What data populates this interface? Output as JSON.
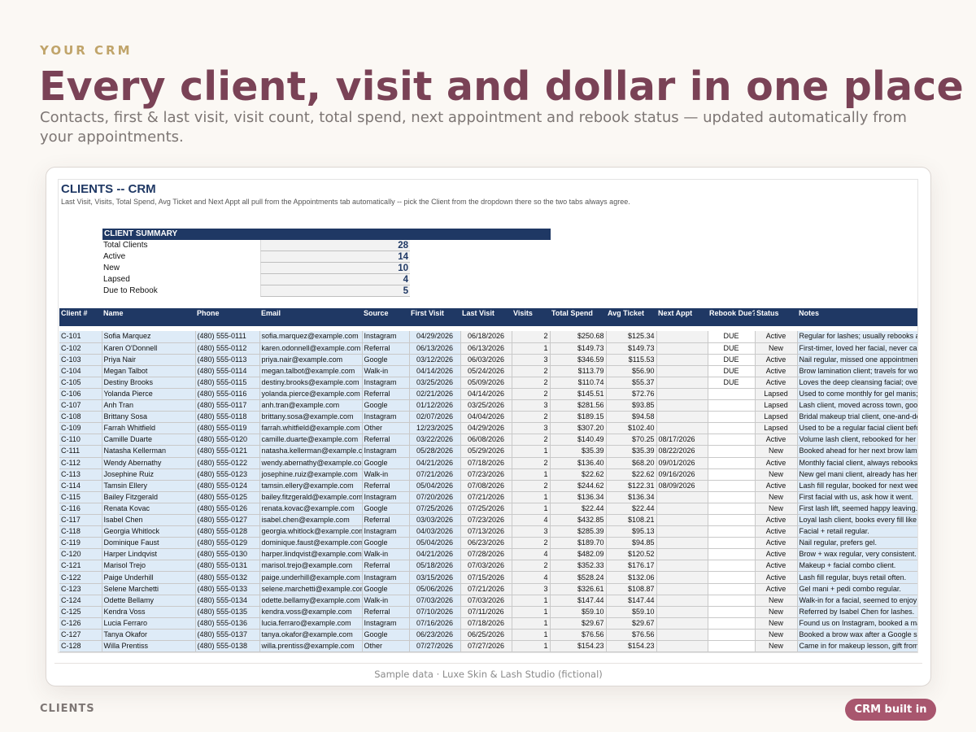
{
  "header": {
    "eyebrow": "YOUR CRM",
    "title": "Every client, visit and dollar in one place",
    "subtitle": "Contacts, first & last visit, visit count, total spend, next appointment and rebook status — updated automatically from your appointments."
  },
  "sheet": {
    "title": "CLIENTS -- CRM",
    "subtitle": "Last Visit, Visits, Total Spend, Avg Ticket and Next Appt all pull from the Appointments tab automatically -- pick the Client from the dropdown there so the two tabs always agree."
  },
  "summary": {
    "heading": "CLIENT SUMMARY",
    "rows": [
      {
        "label": "Total Clients",
        "value": "28"
      },
      {
        "label": "Active",
        "value": "14"
      },
      {
        "label": "New",
        "value": "10"
      },
      {
        "label": "Lapsed",
        "value": "4"
      },
      {
        "label": "Due to Rebook",
        "value": "5"
      }
    ]
  },
  "table": {
    "columns": [
      "Client #",
      "Name",
      "Phone",
      "Email",
      "Source",
      "First Visit",
      "Last Visit",
      "Visits",
      "Total Spend",
      "Avg Ticket",
      "Next Appt",
      "Rebook Due?",
      "Status",
      "Notes"
    ],
    "rows": [
      [
        "C-101",
        "Sofia Marquez",
        "(480) 555-0111",
        "sofia.marquez@example.com",
        "Instagram",
        "04/29/2026",
        "06/18/2026",
        "2",
        "$250.68",
        "$125.34",
        "",
        "DUE",
        "Active",
        "Regular for lashes; usually rebooks at"
      ],
      [
        "C-102",
        "Karen O'Donnell",
        "(480) 555-0112",
        "karen.odonnell@example.com",
        "Referral",
        "06/13/2026",
        "06/13/2026",
        "1",
        "$149.73",
        "$149.73",
        "",
        "DUE",
        "New",
        "First-timer, loved her facial, never cam"
      ],
      [
        "C-103",
        "Priya Nair",
        "(480) 555-0113",
        "priya.nair@example.com",
        "Google",
        "03/12/2026",
        "06/03/2026",
        "3",
        "$346.59",
        "$115.53",
        "",
        "DUE",
        "Active",
        "Nail regular, missed one appointment t"
      ],
      [
        "C-104",
        "Megan Talbot",
        "(480) 555-0114",
        "megan.talbot@example.com",
        "Walk-in",
        "04/14/2026",
        "05/24/2026",
        "2",
        "$113.79",
        "$56.90",
        "",
        "DUE",
        "Active",
        "Brow lamination client; travels for work"
      ],
      [
        "C-105",
        "Destiny Brooks",
        "(480) 555-0115",
        "destiny.brooks@example.com",
        "Instagram",
        "03/25/2026",
        "05/09/2026",
        "2",
        "$110.74",
        "$55.37",
        "",
        "DUE",
        "Active",
        "Loves the deep cleansing facial; overdu"
      ],
      [
        "C-106",
        "Yolanda Pierce",
        "(480) 555-0116",
        "yolanda.pierce@example.com",
        "Referral",
        "02/21/2026",
        "04/14/2026",
        "2",
        "$145.51",
        "$72.76",
        "",
        "",
        "Lapsed",
        "Used to come monthly for gel manis; ha"
      ],
      [
        "C-107",
        "Anh Tran",
        "(480) 555-0117",
        "anh.tran@example.com",
        "Google",
        "01/12/2026",
        "03/25/2026",
        "3",
        "$281.56",
        "$93.85",
        "",
        "",
        "Lapsed",
        "Lash client, moved across town, good"
      ],
      [
        "C-108",
        "Brittany Sosa",
        "(480) 555-0118",
        "brittany.sosa@example.com",
        "Instagram",
        "02/07/2026",
        "04/04/2026",
        "2",
        "$189.15",
        "$94.58",
        "",
        "",
        "Lapsed",
        "Bridal makeup trial client, one-and-don"
      ],
      [
        "C-109",
        "Farrah Whitfield",
        "(480) 555-0119",
        "farrah.whitfield@example.com",
        "Other",
        "12/23/2025",
        "04/29/2026",
        "3",
        "$307.20",
        "$102.40",
        "",
        "",
        "Lapsed",
        "Used to be a regular facial client befo"
      ],
      [
        "C-110",
        "Camille Duarte",
        "(480) 555-0120",
        "camille.duarte@example.com",
        "Referral",
        "03/22/2026",
        "06/08/2026",
        "2",
        "$140.49",
        "$70.25",
        "08/17/2026",
        "",
        "Active",
        "Volume lash client, rebooked for her fill"
      ],
      [
        "C-111",
        "Natasha Kellerman",
        "(480) 555-0121",
        "natasha.kellerman@example.co",
        "Instagram",
        "05/28/2026",
        "05/29/2026",
        "1",
        "$35.39",
        "$35.39",
        "08/22/2026",
        "",
        "New",
        "Booked ahead for her next brow lamina"
      ],
      [
        "C-112",
        "Wendy Abernathy",
        "(480) 555-0122",
        "wendy.abernathy@example.com",
        "Google",
        "04/21/2026",
        "07/18/2026",
        "2",
        "$136.40",
        "$68.20",
        "09/01/2026",
        "",
        "Active",
        "Monthly facial client, always rebooks"
      ],
      [
        "C-113",
        "Josephine Ruiz",
        "(480) 555-0123",
        "josephine.ruiz@example.com",
        "Walk-in",
        "07/21/2026",
        "07/23/2026",
        "1",
        "$22.62",
        "$22.62",
        "09/16/2026",
        "",
        "New",
        "New gel mani client, already has her ne"
      ],
      [
        "C-114",
        "Tamsin Ellery",
        "(480) 555-0124",
        "tamsin.ellery@example.com",
        "Referral",
        "05/04/2026",
        "07/08/2026",
        "2",
        "$244.62",
        "$122.31",
        "08/09/2026",
        "",
        "Active",
        "Lash fill regular, booked for next week."
      ],
      [
        "C-115",
        "Bailey Fitzgerald",
        "(480) 555-0125",
        "bailey.fitzgerald@example.com",
        "Instagram",
        "07/20/2026",
        "07/21/2026",
        "1",
        "$136.34",
        "$136.34",
        "",
        "",
        "New",
        "First facial with us, ask how it went."
      ],
      [
        "C-116",
        "Renata Kovac",
        "(480) 555-0126",
        "renata.kovac@example.com",
        "Google",
        "07/25/2026",
        "07/25/2026",
        "1",
        "$22.44",
        "$22.44",
        "",
        "",
        "New",
        "First lash lift, seemed happy leaving."
      ],
      [
        "C-117",
        "Isabel Chen",
        "(480) 555-0127",
        "isabel.chen@example.com",
        "Referral",
        "03/03/2026",
        "07/23/2026",
        "4",
        "$432.85",
        "$108.21",
        "",
        "",
        "Active",
        "Loyal lash client, books every fill like c"
      ],
      [
        "C-118",
        "Georgia Whitlock",
        "(480) 555-0128",
        "georgia.whitlock@example.com",
        "Instagram",
        "04/03/2026",
        "07/13/2026",
        "3",
        "$285.39",
        "$95.13",
        "",
        "",
        "Active",
        "Facial + retail regular."
      ],
      [
        "C-119",
        "Dominique Faust",
        "(480) 555-0129",
        "dominique.faust@example.com",
        "Google",
        "05/04/2026",
        "06/23/2026",
        "2",
        "$189.70",
        "$94.85",
        "",
        "",
        "Active",
        "Nail regular, prefers gel."
      ],
      [
        "C-120",
        "Harper Lindqvist",
        "(480) 555-0130",
        "harper.lindqvist@example.com",
        "Walk-in",
        "04/21/2026",
        "07/28/2026",
        "4",
        "$482.09",
        "$120.52",
        "",
        "",
        "Active",
        "Brow + wax regular, very consistent."
      ],
      [
        "C-121",
        "Marisol Trejo",
        "(480) 555-0131",
        "marisol.trejo@example.com",
        "Referral",
        "05/18/2026",
        "07/03/2026",
        "2",
        "$352.33",
        "$176.17",
        "",
        "",
        "Active",
        "Makeup + facial combo client."
      ],
      [
        "C-122",
        "Paige Underhill",
        "(480) 555-0132",
        "paige.underhill@example.com",
        "Instagram",
        "03/15/2026",
        "07/15/2026",
        "4",
        "$528.24",
        "$132.06",
        "",
        "",
        "Active",
        "Lash fill regular, buys retail often."
      ],
      [
        "C-123",
        "Selene Marchetti",
        "(480) 555-0133",
        "selene.marchetti@example.com",
        "Google",
        "05/06/2026",
        "07/21/2026",
        "3",
        "$326.61",
        "$108.87",
        "",
        "",
        "Active",
        "Gel mani + pedi combo regular."
      ],
      [
        "C-124",
        "Odette Bellamy",
        "(480) 555-0134",
        "odette.bellamy@example.com",
        "Walk-in",
        "07/03/2026",
        "07/03/2026",
        "1",
        "$147.44",
        "$147.44",
        "",
        "",
        "New",
        "Walk-in for a facial, seemed to enjoy it."
      ],
      [
        "C-125",
        "Kendra Voss",
        "(480) 555-0135",
        "kendra.voss@example.com",
        "Referral",
        "07/10/2026",
        "07/11/2026",
        "1",
        "$59.10",
        "$59.10",
        "",
        "",
        "New",
        "Referred by Isabel Chen for lashes."
      ],
      [
        "C-126",
        "Lucia Ferraro",
        "(480) 555-0136",
        "lucia.ferraro@example.com",
        "Instagram",
        "07/16/2026",
        "07/18/2026",
        "1",
        "$29.67",
        "$29.67",
        "",
        "",
        "New",
        "Found us on Instagram, booked a man"
      ],
      [
        "C-127",
        "Tanya Okafor",
        "(480) 555-0137",
        "tanya.okafor@example.com",
        "Google",
        "06/23/2026",
        "06/25/2026",
        "1",
        "$76.56",
        "$76.56",
        "",
        "",
        "New",
        "Booked a brow wax after a Google sea"
      ],
      [
        "C-128",
        "Willa Prentiss",
        "(480) 555-0138",
        "willa.prentiss@example.com",
        "Other",
        "07/27/2026",
        "07/27/2026",
        "1",
        "$154.23",
        "$154.23",
        "",
        "",
        "New",
        "Came in for makeup lesson, gift from a"
      ]
    ]
  },
  "caption": "Sample data · Luxe Skin & Lash Studio (fictional)",
  "footer": {
    "section_label": "CLIENTS",
    "badge": "CRM built in"
  },
  "colors": {
    "accent": "#7a4256",
    "eyebrow": "#c0a46a",
    "sheet_header": "#1f3864",
    "input_cell": "#deebf7",
    "formula_cell": "#f2f2f2",
    "badge": "#a8566e"
  }
}
